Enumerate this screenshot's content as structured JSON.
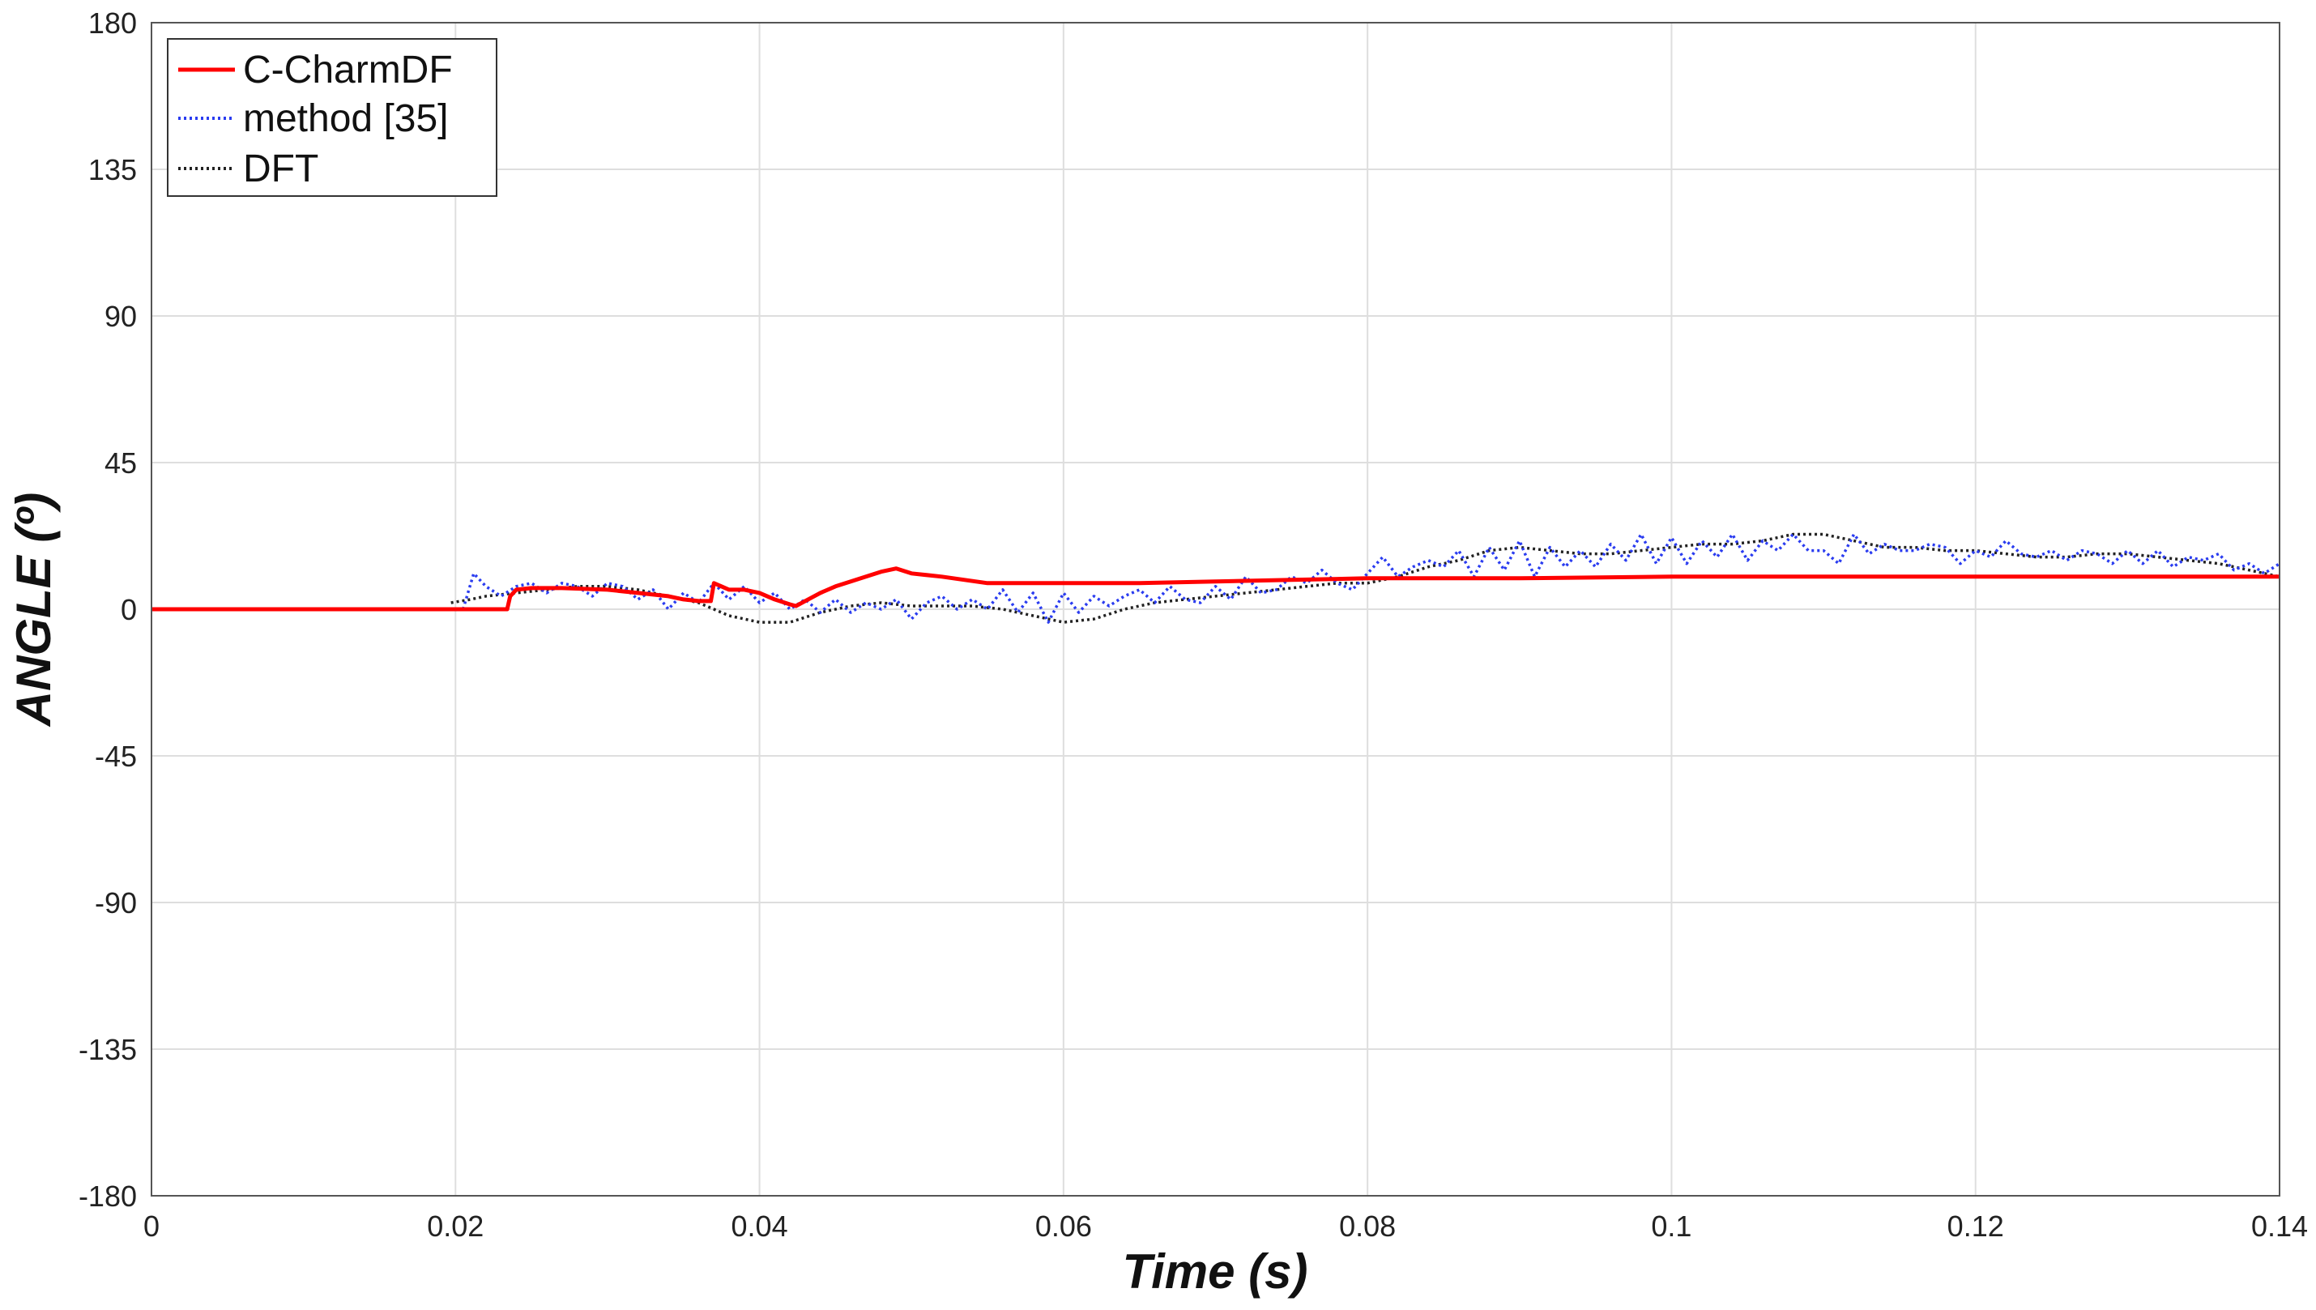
{
  "chart_data": {
    "type": "line",
    "title": "",
    "xlabel": "Time (s)",
    "ylabel": "ANGLE (º)",
    "xlim": [
      0,
      0.14
    ],
    "ylim": [
      -180,
      180
    ],
    "xticks": [
      0,
      0.02,
      0.04,
      0.06,
      0.08,
      0.1,
      0.12,
      0.14
    ],
    "xtick_labels": [
      "0",
      "0.02",
      "0.04",
      "0.06",
      "0.08",
      "0.1",
      "0.12",
      "0.14"
    ],
    "yticks": [
      180,
      135,
      90,
      45,
      0,
      -45,
      -90,
      -135,
      -180
    ],
    "ytick_labels": [
      "180",
      "135",
      "90",
      "45",
      "0",
      "-45",
      "-90",
      "-135",
      "-180"
    ],
    "grid": true,
    "legend_position": "top-left",
    "series": [
      {
        "name": "C-CharmDF",
        "color": "#ff0000",
        "style": "solid",
        "x": [
          0,
          0.0234,
          0.0236,
          0.024,
          0.025,
          0.027,
          0.03,
          0.032,
          0.034,
          0.035,
          0.036,
          0.0368,
          0.037,
          0.038,
          0.039,
          0.04,
          0.041,
          0.042,
          0.0424,
          0.043,
          0.044,
          0.045,
          0.046,
          0.047,
          0.048,
          0.049,
          0.05,
          0.052,
          0.055,
          0.06,
          0.065,
          0.07,
          0.075,
          0.08,
          0.085,
          0.09,
          0.1,
          0.11,
          0.12,
          0.13,
          0.14
        ],
        "y": [
          0,
          0,
          4,
          6,
          6.5,
          6.5,
          6,
          5,
          4,
          3,
          2.5,
          2.5,
          8,
          6,
          6,
          5,
          3,
          1.5,
          1,
          2.5,
          5,
          7,
          8.5,
          10,
          11.5,
          12.5,
          11,
          10,
          8,
          8,
          8,
          8.5,
          9,
          9.5,
          9.5,
          9.5,
          10,
          10,
          10,
          10,
          10
        ]
      },
      {
        "name": "method [35]",
        "color": "#2a3cf0",
        "style": "dotted",
        "x": [
          0.0205,
          0.0212,
          0.022,
          0.023,
          0.024,
          0.025,
          0.026,
          0.027,
          0.028,
          0.029,
          0.03,
          0.031,
          0.032,
          0.033,
          0.034,
          0.035,
          0.036,
          0.037,
          0.038,
          0.039,
          0.04,
          0.041,
          0.042,
          0.043,
          0.044,
          0.045,
          0.046,
          0.047,
          0.048,
          0.049,
          0.05,
          0.051,
          0.052,
          0.053,
          0.054,
          0.055,
          0.056,
          0.057,
          0.058,
          0.059,
          0.06,
          0.061,
          0.062,
          0.063,
          0.064,
          0.065,
          0.066,
          0.067,
          0.068,
          0.069,
          0.07,
          0.071,
          0.072,
          0.073,
          0.074,
          0.075,
          0.076,
          0.077,
          0.078,
          0.079,
          0.08,
          0.081,
          0.082,
          0.083,
          0.084,
          0.085,
          0.086,
          0.087,
          0.088,
          0.089,
          0.09,
          0.091,
          0.092,
          0.093,
          0.094,
          0.095,
          0.096,
          0.097,
          0.098,
          0.099,
          0.1,
          0.101,
          0.102,
          0.103,
          0.104,
          0.105,
          0.106,
          0.107,
          0.108,
          0.109,
          0.11,
          0.111,
          0.112,
          0.113,
          0.114,
          0.115,
          0.116,
          0.117,
          0.118,
          0.119,
          0.12,
          0.121,
          0.122,
          0.123,
          0.124,
          0.125,
          0.126,
          0.127,
          0.128,
          0.129,
          0.13,
          0.131,
          0.132,
          0.133,
          0.134,
          0.135,
          0.136,
          0.137,
          0.138,
          0.139,
          0.14
        ],
        "y": [
          0,
          11,
          7,
          4,
          7,
          8,
          5,
          8,
          7,
          4,
          8,
          7,
          3,
          6,
          0,
          5,
          2,
          8,
          3,
          7,
          2,
          5,
          0,
          3,
          -1,
          3,
          -1,
          2,
          0,
          3,
          -3,
          2,
          4,
          0,
          3,
          0,
          6,
          -1,
          5,
          -4,
          5,
          -1,
          4,
          1,
          4,
          6,
          2,
          7,
          3,
          2,
          7,
          3,
          10,
          5,
          6,
          10,
          8,
          12,
          8,
          6,
          11,
          16,
          10,
          13,
          15,
          13,
          18,
          10,
          19,
          12,
          21,
          10,
          19,
          13,
          18,
          13,
          20,
          15,
          23,
          14,
          22,
          14,
          21,
          16,
          23,
          15,
          21,
          18,
          23,
          18,
          18,
          14,
          23,
          17,
          20,
          18,
          18,
          20,
          19,
          14,
          18,
          16,
          21,
          17,
          16,
          18,
          15,
          18,
          17,
          14,
          18,
          14,
          18,
          13,
          16,
          15,
          17,
          12,
          14,
          11,
          14
        ]
      },
      {
        "name": "DFT",
        "color": "#222222",
        "style": "dotted",
        "x": [
          0.0197,
          0.021,
          0.022,
          0.024,
          0.026,
          0.028,
          0.03,
          0.032,
          0.034,
          0.036,
          0.038,
          0.04,
          0.042,
          0.044,
          0.046,
          0.048,
          0.05,
          0.052,
          0.054,
          0.056,
          0.058,
          0.06,
          0.062,
          0.064,
          0.066,
          0.068,
          0.07,
          0.072,
          0.074,
          0.076,
          0.078,
          0.08,
          0.082,
          0.084,
          0.086,
          0.088,
          0.09,
          0.092,
          0.094,
          0.096,
          0.098,
          0.1,
          0.102,
          0.104,
          0.106,
          0.108,
          0.11,
          0.112,
          0.114,
          0.116,
          0.118,
          0.12,
          0.122,
          0.124,
          0.126,
          0.128,
          0.13,
          0.132,
          0.134,
          0.136,
          0.138,
          0.14
        ],
        "y": [
          2,
          3,
          4,
          5,
          6,
          7,
          7,
          6,
          4,
          2,
          -2,
          -4,
          -4,
          -1,
          1,
          2,
          1,
          1,
          1,
          0,
          -2,
          -4,
          -3,
          0,
          2,
          3,
          4,
          5,
          6,
          7,
          8,
          8,
          10,
          13,
          15,
          18,
          19,
          18,
          17,
          17,
          18,
          19,
          20,
          20,
          21,
          23,
          23,
          21,
          19,
          19,
          18,
          18,
          17,
          16,
          16,
          17,
          17,
          16,
          15,
          14,
          12,
          10
        ]
      }
    ]
  }
}
